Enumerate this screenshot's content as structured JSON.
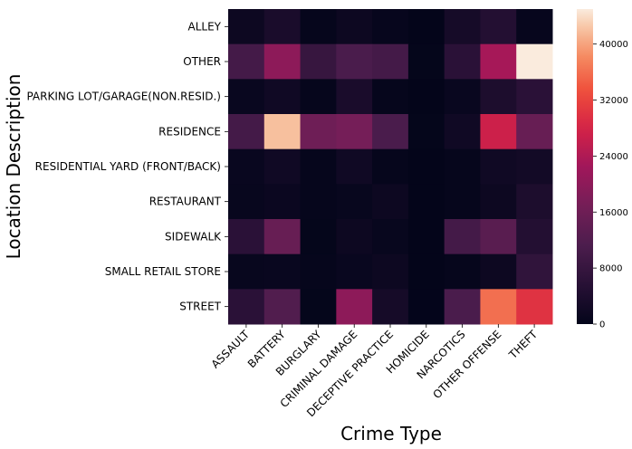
{
  "chart_data": {
    "type": "heatmap",
    "xlabel": "Crime Type",
    "ylabel": "Location Description",
    "x_categories": [
      "ASSAULT",
      "BATTERY",
      "BURGLARY",
      "CRIMINAL DAMAGE",
      "DECEPTIVE PRACTICE",
      "HOMICIDE",
      "NARCOTICS",
      "OTHER OFFENSE",
      "THEFT"
    ],
    "y_categories": [
      "ALLEY",
      "OTHER",
      "PARKING LOT/GARAGE(NON.RESID.)",
      "RESIDENCE",
      "RESIDENTIAL YARD (FRONT/BACK)",
      "RESTAURANT",
      "SIDEWALK",
      "SMALL RETAIL STORE",
      "STREET"
    ],
    "values": [
      [
        1500,
        3500,
        500,
        1500,
        600,
        100,
        3000,
        5000,
        600
      ],
      [
        10000,
        20000,
        8000,
        11000,
        10000,
        300,
        6000,
        23000,
        45000
      ],
      [
        1000,
        2000,
        400,
        3500,
        500,
        100,
        1000,
        4000,
        6000
      ],
      [
        10000,
        42000,
        16000,
        17000,
        11000,
        300,
        2000,
        27000,
        15000
      ],
      [
        1000,
        2000,
        500,
        2000,
        500,
        100,
        500,
        2000,
        2500
      ],
      [
        800,
        1200,
        500,
        800,
        1500,
        100,
        500,
        1500,
        4000
      ],
      [
        6000,
        15000,
        300,
        1500,
        800,
        100,
        10000,
        13000,
        5000
      ],
      [
        800,
        1000,
        400,
        1000,
        1500,
        100,
        500,
        1500,
        7000
      ],
      [
        6000,
        12000,
        300,
        20000,
        3000,
        200,
        11000,
        36000,
        30000
      ]
    ],
    "colorbar": {
      "min": 0,
      "max": 45000,
      "ticks": [
        0,
        8000,
        16000,
        24000,
        32000,
        40000
      ]
    },
    "colormap": "rocket"
  }
}
